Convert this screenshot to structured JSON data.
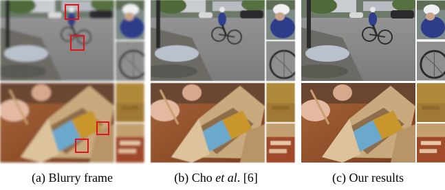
{
  "captions": [
    [
      "(a) Blurry frame"
    ],
    [
      "(b) Cho ",
      "et al",
      ". [6]"
    ],
    [
      "(c) Our results"
    ]
  ]
}
